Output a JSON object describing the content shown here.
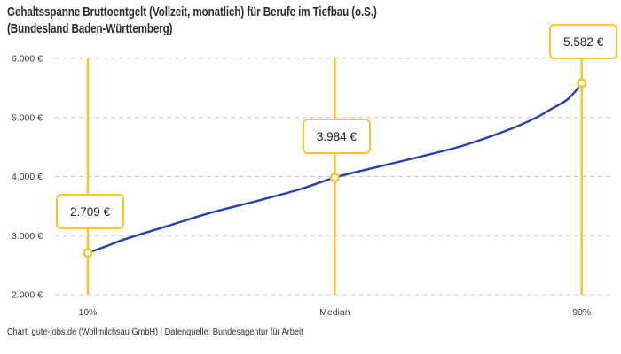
{
  "title": {
    "line1": "Gehaltsspanne Bruttoentgelt (Vollzeit, monatlich) für Berufe im Tiefbau (o.S.)",
    "line2": "(Bundesland Baden-Württemberg)"
  },
  "footer": "Chart: gute-jobs.de (Wollmilchsau GmbH) | Datenquelle: Bundesagentur für Arbeit",
  "colors": {
    "accent": "#FDC32B",
    "line": "#2840AC",
    "grid": "#C8C8C8",
    "title_text": "#2B2B2B",
    "axis_text": "#3A3A3A",
    "box_text": "#222222"
  },
  "chart_data": {
    "type": "line",
    "title": "Gehaltsspanne Bruttoentgelt (Vollzeit, monatlich) für Berufe im Tiefbau (o.S.) (Bundesland Baden-Württemberg)",
    "xlabel": "",
    "ylabel": "",
    "ylim": [
      2000,
      6000
    ],
    "grid": "horizontal-dashed",
    "legend": "none",
    "y_ticks": [
      {
        "value": 6000,
        "label": "6.000 €"
      },
      {
        "value": 5000,
        "label": "5.000 €"
      },
      {
        "value": 4000,
        "label": "4.000 €"
      },
      {
        "value": 3000,
        "label": "3.000 €"
      },
      {
        "value": 2000,
        "label": "2.000 €"
      }
    ],
    "points": [
      {
        "percentile": 10,
        "label": "10%",
        "value": 2709,
        "display": "2.709 €"
      },
      {
        "percentile": 50,
        "label": "Median",
        "value": 3984,
        "display": "3.984 €"
      },
      {
        "percentile": 90,
        "label": "90%",
        "value": 5582,
        "display": "5.582 €"
      }
    ],
    "curve_samples": [
      {
        "percentile": 10,
        "value": 2709
      },
      {
        "percentile": 13,
        "value": 2820
      },
      {
        "percentile": 16,
        "value": 2940
      },
      {
        "percentile": 23,
        "value": 3165
      },
      {
        "percentile": 30,
        "value": 3390
      },
      {
        "percentile": 37.5,
        "value": 3590
      },
      {
        "percentile": 44.5,
        "value": 3790
      },
      {
        "percentile": 50,
        "value": 3984
      },
      {
        "percentile": 56,
        "value": 4140
      },
      {
        "percentile": 63,
        "value": 4315
      },
      {
        "percentile": 70.5,
        "value": 4515
      },
      {
        "percentile": 77.5,
        "value": 4765
      },
      {
        "percentile": 82.5,
        "value": 4990
      },
      {
        "percentile": 85,
        "value": 5140
      },
      {
        "percentile": 87.5,
        "value": 5290
      },
      {
        "percentile": 89,
        "value": 5445
      },
      {
        "percentile": 90,
        "value": 5582
      }
    ]
  }
}
